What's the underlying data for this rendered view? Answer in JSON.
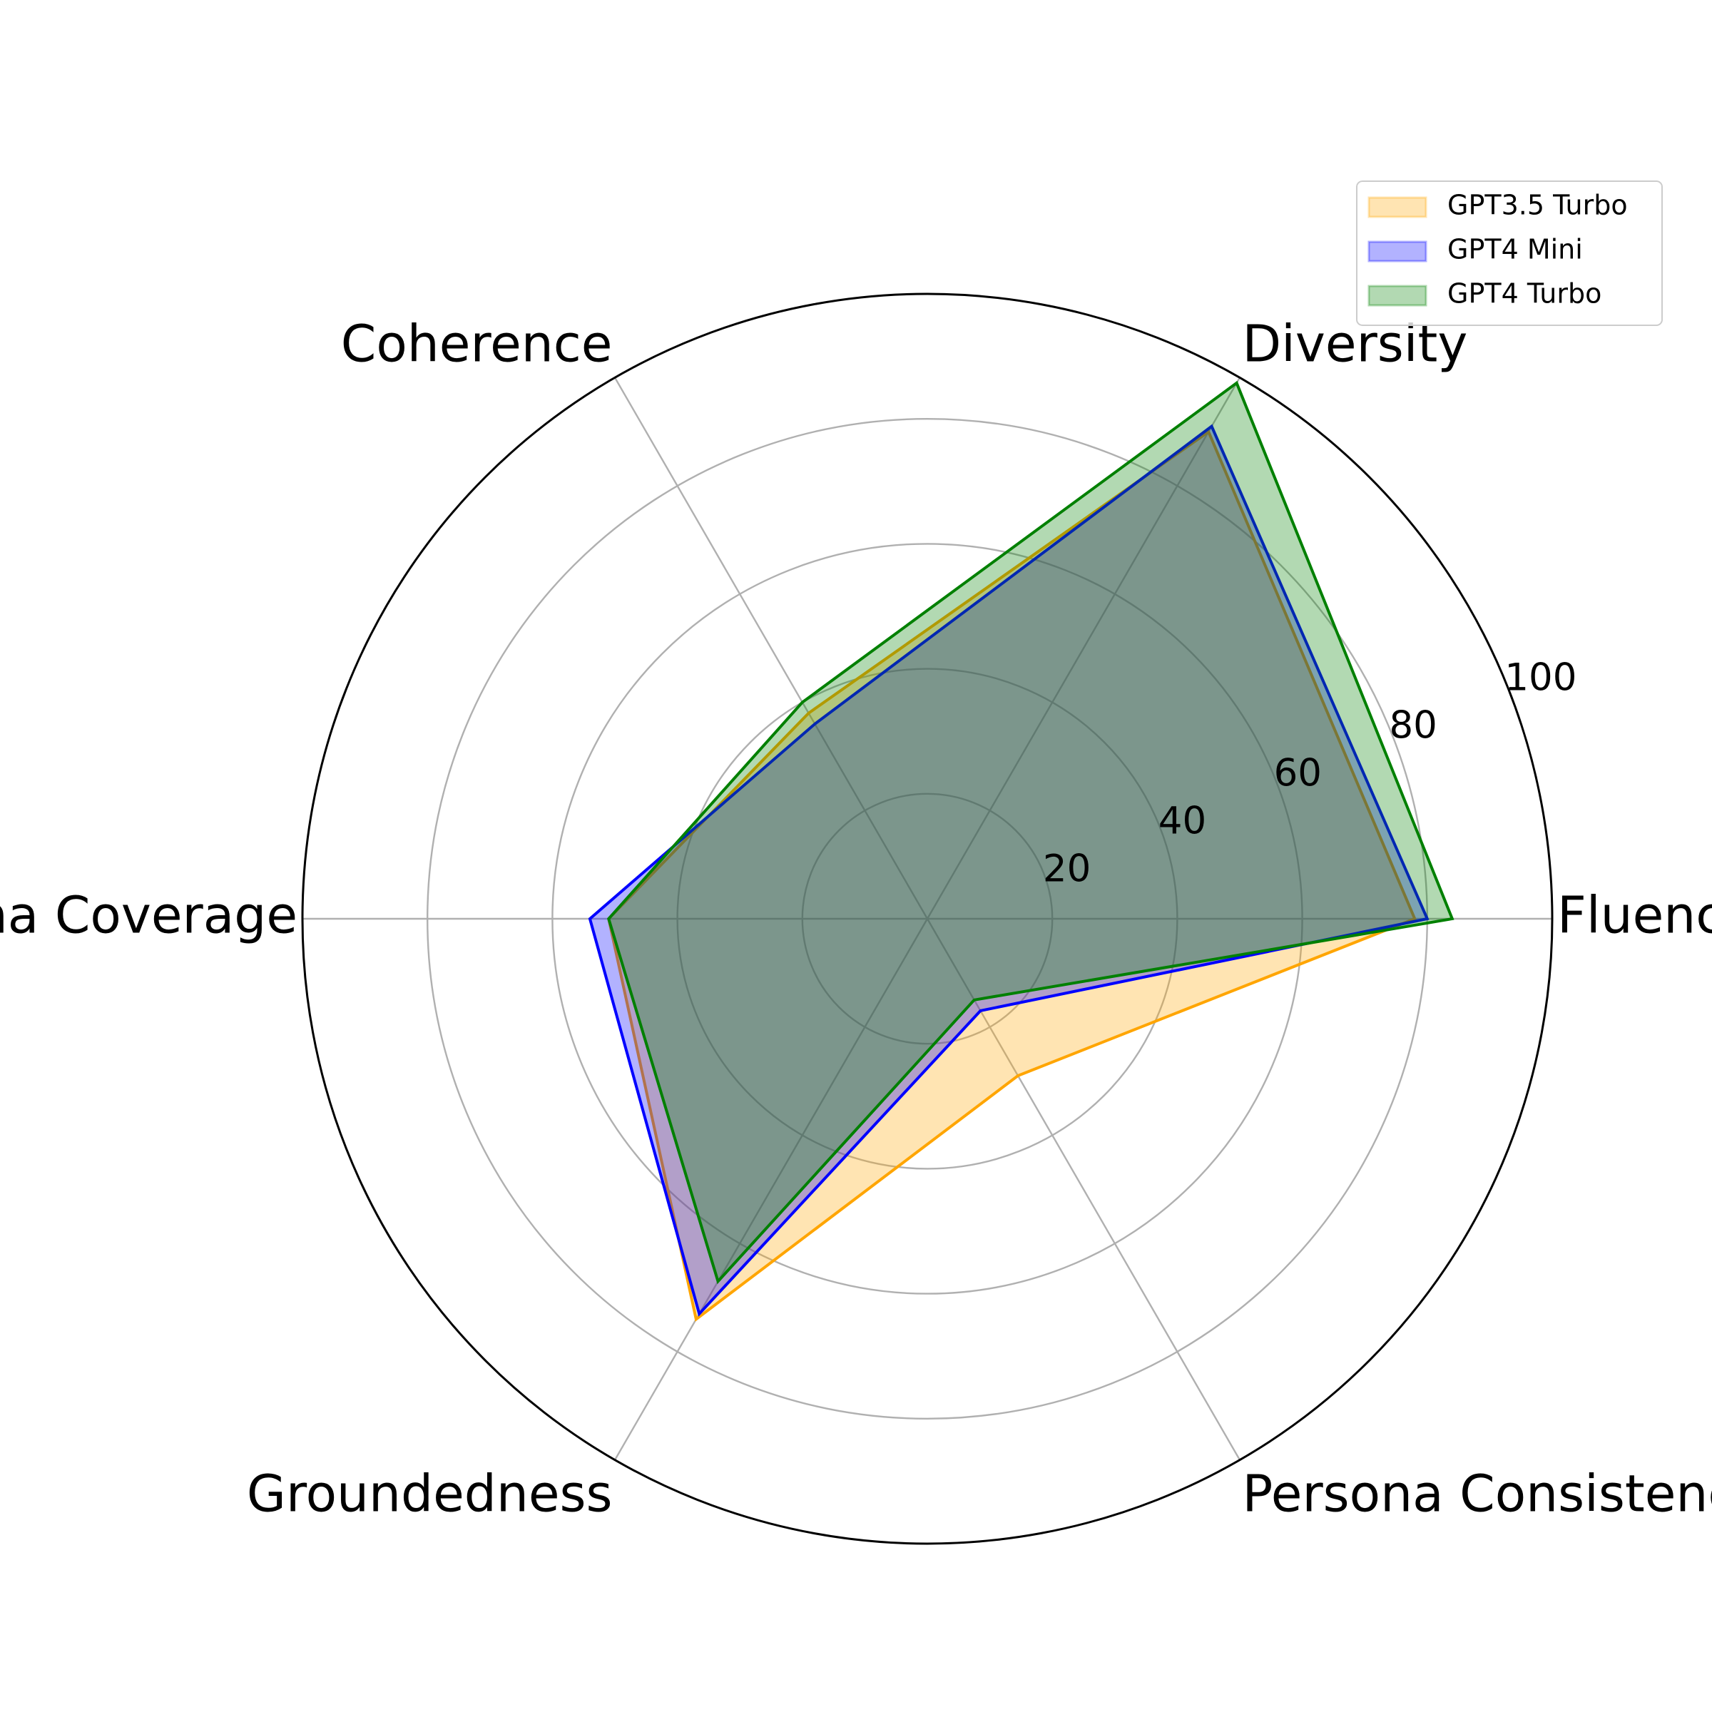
{
  "chart_data": {
    "type": "radar",
    "axes": [
      "Fluency",
      "Diversity",
      "Coherence",
      "Persona Coverage",
      "Groundedness",
      "Persona Consistency"
    ],
    "rlim": [
      0,
      100
    ],
    "rticks": [
      20,
      40,
      60,
      80,
      100
    ],
    "grid": true,
    "legend_position": "top-right",
    "series": [
      {
        "name": "GPT3.5 Turbo",
        "color": "#FFA500",
        "values": [
          78,
          90,
          38,
          51,
          74,
          29
        ]
      },
      {
        "name": "GPT4 Mini",
        "color": "#0000FF",
        "values": [
          80,
          91,
          36,
          54,
          73,
          17
        ]
      },
      {
        "name": "GPT4 Turbo",
        "color": "#008000",
        "values": [
          84,
          99,
          40,
          51,
          67,
          15
        ]
      }
    ]
  }
}
